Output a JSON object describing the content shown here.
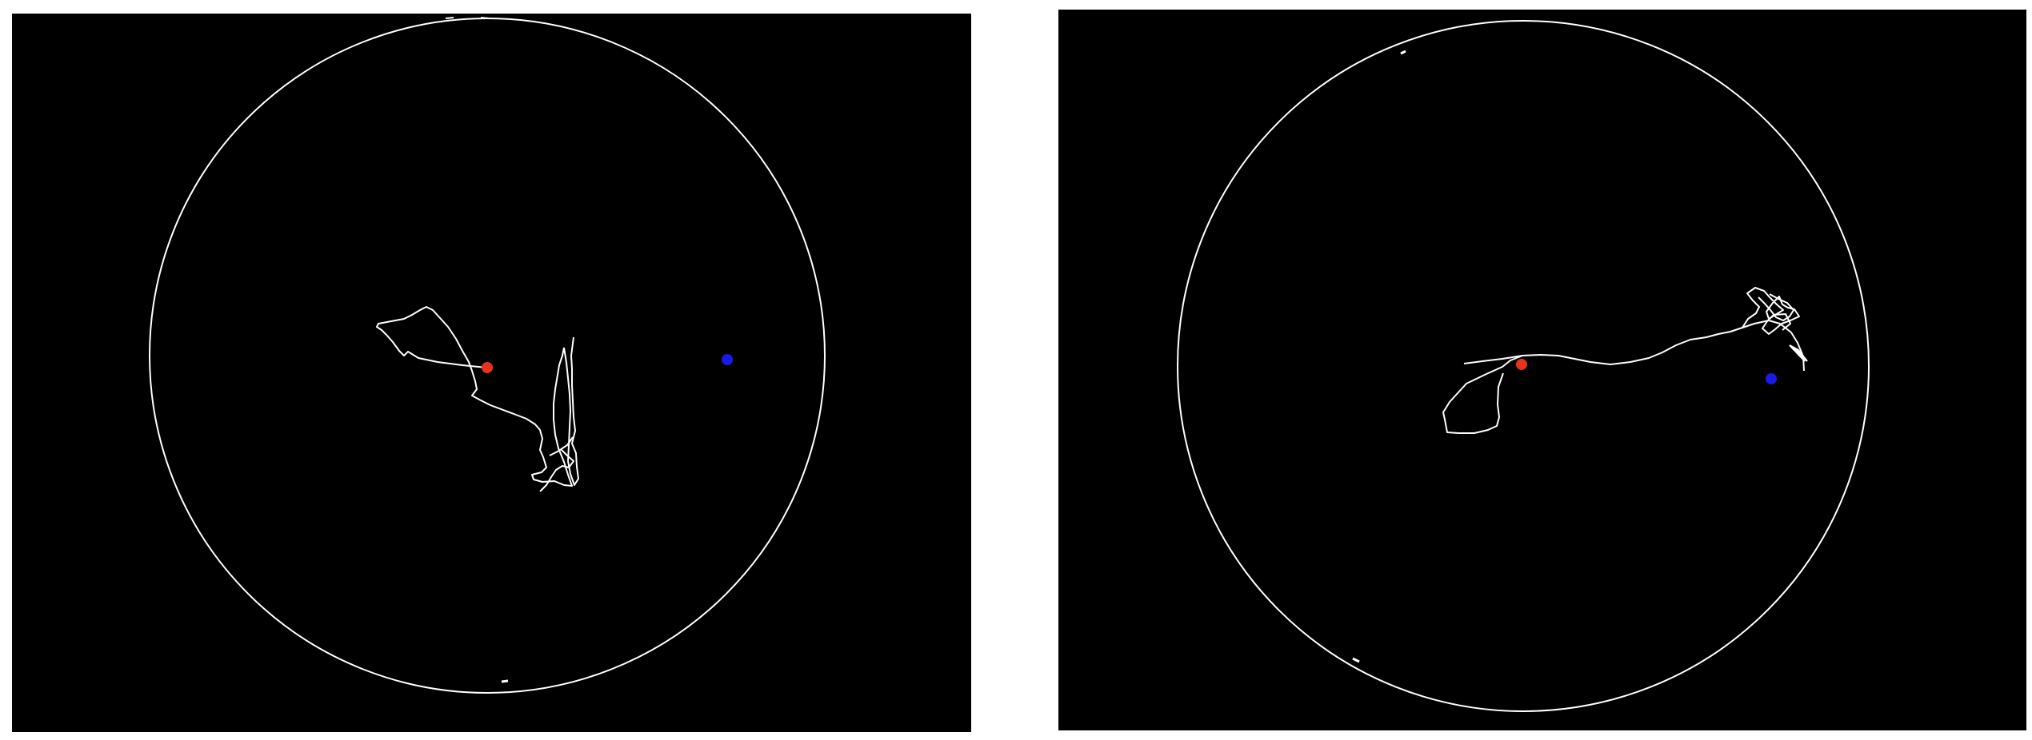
{
  "figure": {
    "panels": [
      {
        "id": "left",
        "arena_color": "#ffffff",
        "path_color": "#ffffff",
        "start_marker_color": "#e8321e",
        "target_marker_color": "#1a1ae6"
      },
      {
        "id": "right",
        "arena_color": "#ffffff",
        "path_color": "#ffffff",
        "start_marker_color": "#e8321e",
        "target_marker_color": "#1a1ae6"
      }
    ]
  }
}
